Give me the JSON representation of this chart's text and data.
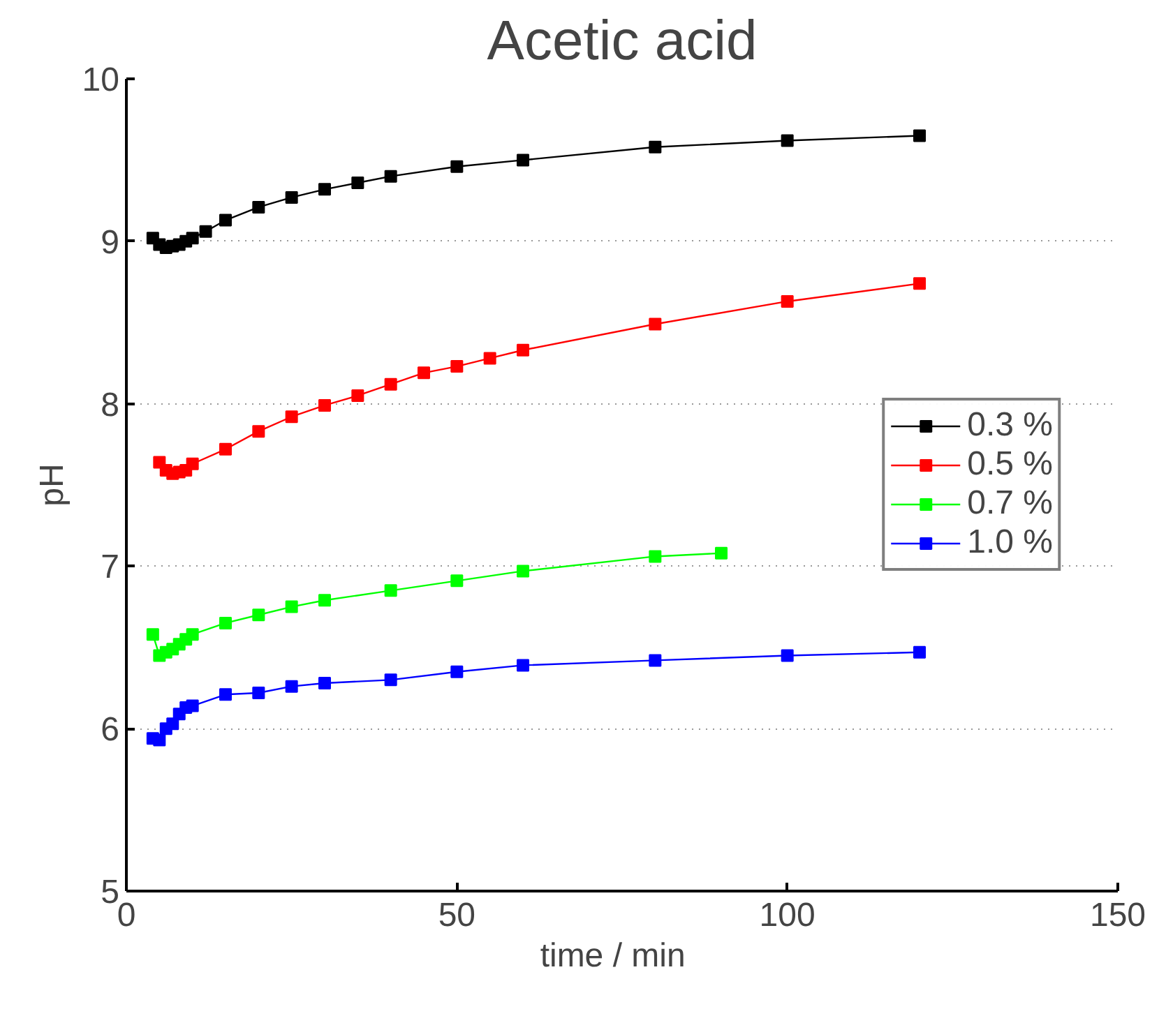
{
  "chart_data": {
    "type": "line",
    "title": "Acetic acid",
    "xlabel": "time  /  min",
    "ylabel": "pH",
    "xlim": [
      0,
      150
    ],
    "xticks": [
      0,
      50,
      100,
      150
    ],
    "ylim": [
      5,
      10
    ],
    "yticks": [
      5,
      6,
      7,
      8,
      9,
      10
    ],
    "grid": "y",
    "legend": "right",
    "marker": "square",
    "line_style": "solid",
    "series": [
      {
        "name": "0.3 %",
        "color": "#000000",
        "x": [
          4,
          5,
          6,
          7,
          8,
          9,
          10,
          12,
          15,
          20,
          25,
          30,
          35,
          40,
          50,
          60,
          80,
          100,
          120
        ],
        "values": [
          9.02,
          8.98,
          8.96,
          8.97,
          8.98,
          9.0,
          9.02,
          9.06,
          9.13,
          9.21,
          9.27,
          9.32,
          9.36,
          9.4,
          9.46,
          9.5,
          9.58,
          9.62,
          9.65
        ]
      },
      {
        "name": "0.5 %",
        "color": "#ff0000",
        "x": [
          5,
          6,
          7,
          8,
          9,
          10,
          15,
          20,
          25,
          30,
          35,
          40,
          45,
          50,
          55,
          60,
          80,
          100,
          120
        ],
        "values": [
          7.64,
          7.59,
          7.57,
          7.58,
          7.59,
          7.63,
          7.72,
          7.83,
          7.92,
          7.99,
          8.05,
          8.12,
          8.19,
          8.23,
          8.28,
          8.33,
          8.49,
          8.63,
          8.74
        ]
      },
      {
        "name": "0.7 %",
        "color": "#00ff00",
        "x": [
          4,
          5,
          6,
          7,
          8,
          9,
          10,
          15,
          20,
          25,
          30,
          40,
          50,
          60,
          80,
          90
        ],
        "values": [
          6.58,
          6.45,
          6.47,
          6.49,
          6.52,
          6.55,
          6.58,
          6.65,
          6.7,
          6.75,
          6.79,
          6.85,
          6.91,
          6.97,
          7.06,
          7.08
        ]
      },
      {
        "name": "1.0 %",
        "color": "#0000ff",
        "x": [
          4,
          5,
          6,
          7,
          8,
          9,
          10,
          15,
          20,
          25,
          30,
          40,
          50,
          60,
          80,
          100,
          120
        ],
        "values": [
          5.94,
          5.93,
          6.0,
          6.03,
          6.09,
          6.13,
          6.14,
          6.21,
          6.22,
          6.26,
          6.28,
          6.3,
          6.35,
          6.39,
          6.42,
          6.45,
          6.47
        ]
      }
    ]
  }
}
